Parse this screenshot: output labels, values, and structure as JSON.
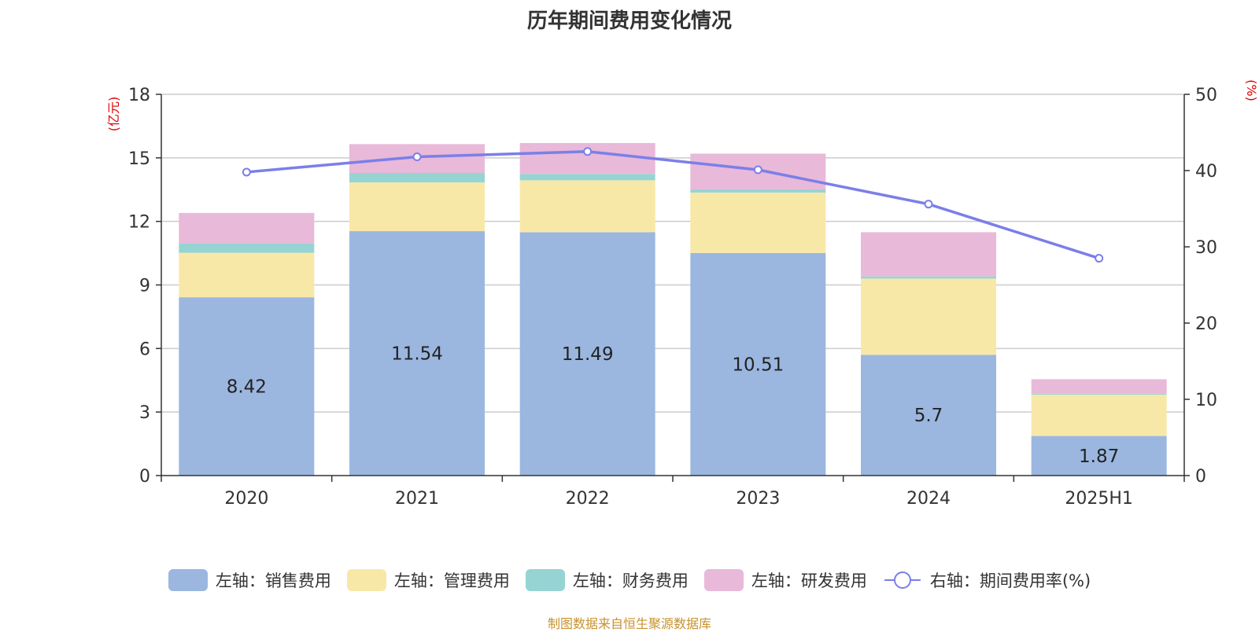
{
  "chart_data": {
    "type": "bar",
    "title": "历年期间费用变化情况",
    "categories": [
      "2020",
      "2021",
      "2022",
      "2023",
      "2024",
      "2025H1"
    ],
    "y_left": {
      "unit_label": "(亿元)",
      "ticks": [
        "0",
        "3",
        "6",
        "9",
        "12",
        "15",
        "18"
      ],
      "lim": [
        0,
        18
      ]
    },
    "y_right": {
      "unit_label": "(%)",
      "ticks": [
        "0",
        "10",
        "20",
        "30",
        "40",
        "50"
      ],
      "lim": [
        0,
        50
      ]
    },
    "grid": true,
    "legend_position": "bottom",
    "series": [
      {
        "name": "左轴：销售费用",
        "axis": "left",
        "stack": true,
        "color": "#9bb7e0",
        "values": [
          8.42,
          11.54,
          11.49,
          10.51,
          5.7,
          1.87
        ],
        "labels": [
          "8.42",
          "11.54",
          "11.49",
          "10.51",
          "5.7",
          "1.87"
        ]
      },
      {
        "name": "左轴：管理费用",
        "axis": "left",
        "stack": true,
        "color": "#f8e8a8",
        "values": [
          2.1,
          2.3,
          2.45,
          2.85,
          3.6,
          1.95
        ]
      },
      {
        "name": "左轴：财务费用",
        "axis": "left",
        "stack": true,
        "color": "#96d4d4",
        "values": [
          0.45,
          0.45,
          0.3,
          0.15,
          0.1,
          0.05
        ]
      },
      {
        "name": "左轴：研发费用",
        "axis": "left",
        "stack": true,
        "color": "#e8b9d9",
        "values": [
          1.43,
          1.36,
          1.46,
          1.69,
          2.09,
          0.68
        ]
      },
      {
        "name": "右轴：期间费用率(%)",
        "axis": "right",
        "type": "line",
        "color": "#7b7fe8",
        "values": [
          39.8,
          41.8,
          42.5,
          40.1,
          35.6,
          28.5
        ]
      }
    ]
  },
  "source_note": "制图数据来自恒生聚源数据库"
}
